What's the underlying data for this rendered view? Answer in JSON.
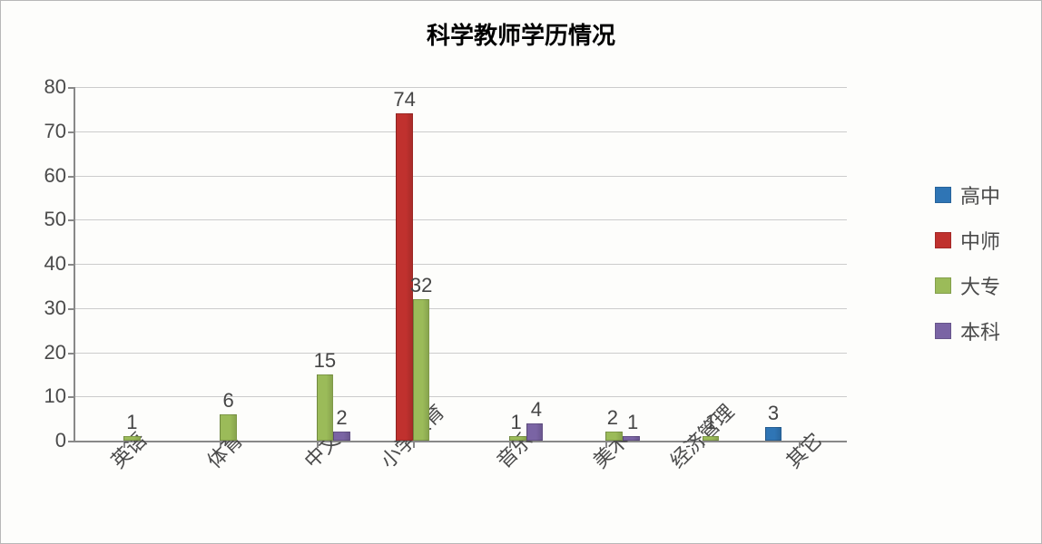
{
  "chart": {
    "type": "bar-grouped",
    "title": "科学教师学历情况",
    "title_fontsize": 26,
    "title_weight": "bold",
    "background_color": "#fdfdfb",
    "axis_color": "#888888",
    "grid_color": "#cccccc",
    "label_color": "#4a4a4a",
    "value_label_color": "#454545",
    "tick_fontsize": 22,
    "value_label_fontsize": 22,
    "xlabel_fontsize": 22,
    "legend_fontsize": 22,
    "xlabel_rotation_deg": -45,
    "ylim": [
      0,
      80
    ],
    "ytick_step": 10,
    "yticks": [
      0,
      10,
      20,
      30,
      40,
      50,
      60,
      70,
      80
    ],
    "bar_width_ratio": 0.7,
    "categories": [
      "英语",
      "体育",
      "中文",
      "小学教育",
      "音乐",
      "美术",
      "经济管理",
      "其它"
    ],
    "series": [
      {
        "name": "高中",
        "color": "#2f75b5"
      },
      {
        "name": "中师",
        "color": "#c0312e"
      },
      {
        "name": "大专",
        "color": "#9bbb59"
      },
      {
        "name": "本科",
        "color": "#7a64a4"
      }
    ],
    "data": [
      {
        "category": "英语",
        "高中": null,
        "中师": null,
        "大专": 1,
        "本科": null
      },
      {
        "category": "体育",
        "高中": null,
        "中师": null,
        "大专": 6,
        "本科": null
      },
      {
        "category": "中文",
        "高中": null,
        "中师": null,
        "大专": 15,
        "本科": 2
      },
      {
        "category": "小学教育",
        "高中": null,
        "中师": 74,
        "大专": 32,
        "本科": null
      },
      {
        "category": "音乐",
        "高中": null,
        "中师": null,
        "大专": 1,
        "本科": 4
      },
      {
        "category": "美术",
        "高中": null,
        "中师": null,
        "大专": 2,
        "本科": 1
      },
      {
        "category": "经济管理",
        "高中": null,
        "中师": null,
        "大专": 1,
        "本科": null
      },
      {
        "category": "其它",
        "高中": 3,
        "中师": null,
        "大专": null,
        "本科": null
      }
    ]
  }
}
